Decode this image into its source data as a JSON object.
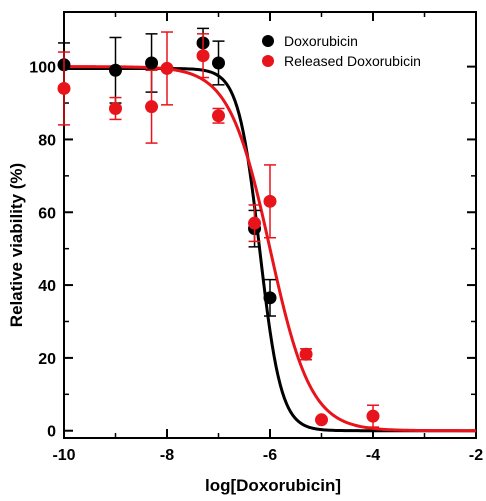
{
  "chart_data": {
    "type": "scatter",
    "xlabel": "log[Doxorubicin]",
    "ylabel": "Relative viability (%)",
    "xlim": [
      -10,
      -2
    ],
    "ylim": [
      -2,
      115
    ],
    "x_ticks": [
      -10,
      -8,
      -6,
      -4,
      -2
    ],
    "y_ticks": [
      0,
      20,
      40,
      60,
      80,
      100
    ],
    "legend_position": "top-right",
    "series": [
      {
        "name": "Doxorubicin",
        "color": "#000000",
        "points": [
          {
            "x": -10.0,
            "y": 100.5,
            "err": 6
          },
          {
            "x": -9.0,
            "y": 99.0,
            "err": 9
          },
          {
            "x": -8.3,
            "y": 101.0,
            "err": 8
          },
          {
            "x": -7.3,
            "y": 106.5,
            "err": 4
          },
          {
            "x": -7.0,
            "y": 101.0,
            "err": 6
          },
          {
            "x": -6.3,
            "y": 55.5,
            "err": 5
          },
          {
            "x": -6.0,
            "y": 36.5,
            "err": 5
          }
        ],
        "fit": {
          "top": 99.5,
          "bottom": 0,
          "log_ic50": -6.2,
          "hill": -2.1
        }
      },
      {
        "name": "Released Doxorubicin",
        "color": "#e8141c",
        "points": [
          {
            "x": -10.0,
            "y": 94.0,
            "err": 10
          },
          {
            "x": -9.0,
            "y": 88.5,
            "err": 3
          },
          {
            "x": -8.3,
            "y": 89.0,
            "err": 10
          },
          {
            "x": -8.0,
            "y": 99.5,
            "err": 10
          },
          {
            "x": -7.3,
            "y": 103.0,
            "err": 6
          },
          {
            "x": -7.0,
            "y": 86.5,
            "err": 2
          },
          {
            "x": -6.3,
            "y": 57.0,
            "err": 5
          },
          {
            "x": -6.0,
            "y": 63.0,
            "err": 10
          },
          {
            "x": -5.3,
            "y": 21.0,
            "err": 1.5
          },
          {
            "x": -5.0,
            "y": 3.0,
            "err": 0.5
          },
          {
            "x": -4.0,
            "y": 4.0,
            "err": 3
          }
        ],
        "fit": {
          "top": 100,
          "bottom": 0,
          "log_ic50": -6.0,
          "hill": -1.1
        }
      }
    ]
  }
}
